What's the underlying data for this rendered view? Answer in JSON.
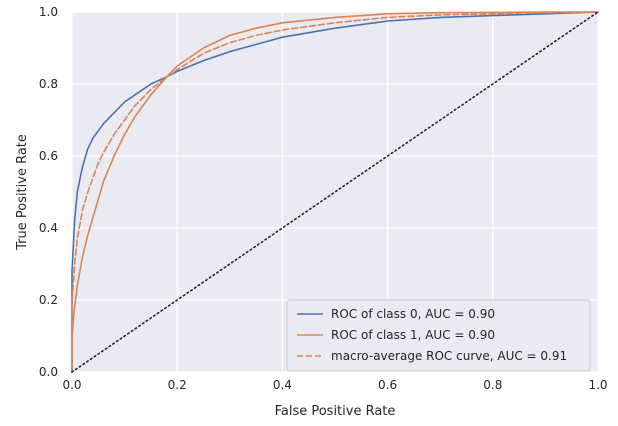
{
  "chart_data": {
    "type": "line",
    "title": "",
    "xlabel": "False Positive Rate",
    "ylabel": "True Positive Rate",
    "xlim": [
      0.0,
      1.0
    ],
    "ylim": [
      0.0,
      1.0
    ],
    "xticks": [
      "0.0",
      "0.2",
      "0.4",
      "0.6",
      "0.8",
      "1.0"
    ],
    "yticks": [
      "0.0",
      "0.2",
      "0.4",
      "0.6",
      "0.8",
      "1.0"
    ],
    "grid": true,
    "legend_position": "lower-right",
    "series": [
      {
        "name": "ROC of class 0, AUC = 0.90",
        "color": "#4c72b0",
        "style": "solid",
        "x": [
          0.0,
          0.0,
          0.005,
          0.01,
          0.02,
          0.03,
          0.04,
          0.05,
          0.06,
          0.08,
          0.1,
          0.12,
          0.15,
          0.18,
          0.2,
          0.25,
          0.3,
          0.35,
          0.4,
          0.5,
          0.6,
          0.7,
          0.8,
          0.9,
          1.0
        ],
        "y": [
          0.0,
          0.28,
          0.42,
          0.5,
          0.57,
          0.62,
          0.65,
          0.67,
          0.69,
          0.72,
          0.75,
          0.77,
          0.8,
          0.82,
          0.835,
          0.865,
          0.89,
          0.91,
          0.93,
          0.955,
          0.975,
          0.985,
          0.99,
          0.995,
          1.0
        ]
      },
      {
        "name": "ROC of class 1, AUC = 0.90",
        "color": "#dd8452",
        "style": "solid",
        "x": [
          0.0,
          0.0,
          0.005,
          0.01,
          0.02,
          0.03,
          0.04,
          0.05,
          0.06,
          0.08,
          0.1,
          0.12,
          0.15,
          0.18,
          0.2,
          0.25,
          0.3,
          0.35,
          0.4,
          0.5,
          0.6,
          0.7,
          0.8,
          0.9,
          1.0
        ],
        "y": [
          0.0,
          0.1,
          0.18,
          0.24,
          0.32,
          0.38,
          0.43,
          0.48,
          0.53,
          0.6,
          0.66,
          0.71,
          0.77,
          0.82,
          0.85,
          0.9,
          0.935,
          0.955,
          0.97,
          0.985,
          0.995,
          0.998,
          0.999,
          1.0,
          1.0
        ]
      },
      {
        "name": "macro-average ROC curve, AUC = 0.91",
        "color": "#dd8452",
        "style": "dashed",
        "x": [
          0.0,
          0.0,
          0.005,
          0.01,
          0.02,
          0.03,
          0.04,
          0.05,
          0.06,
          0.08,
          0.1,
          0.12,
          0.15,
          0.18,
          0.2,
          0.25,
          0.3,
          0.35,
          0.4,
          0.5,
          0.6,
          0.7,
          0.8,
          0.9,
          1.0
        ],
        "y": [
          0.0,
          0.19,
          0.3,
          0.37,
          0.45,
          0.5,
          0.54,
          0.58,
          0.61,
          0.66,
          0.7,
          0.74,
          0.785,
          0.82,
          0.84,
          0.885,
          0.915,
          0.935,
          0.95,
          0.97,
          0.985,
          0.992,
          0.995,
          0.998,
          1.0
        ]
      },
      {
        "name": "",
        "color": "#262626",
        "style": "dotted",
        "x": [
          0.0,
          1.0
        ],
        "y": [
          0.0,
          1.0
        ]
      }
    ]
  }
}
